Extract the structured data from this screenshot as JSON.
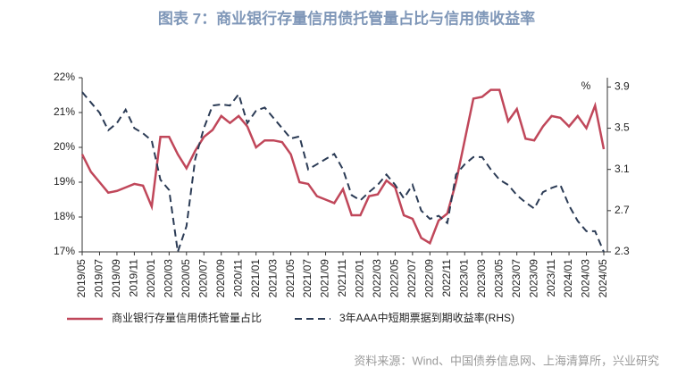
{
  "chart_data": {
    "type": "line",
    "title": "图表 7：商业银行存量信用债托管量占比与信用债收益率",
    "y2_label": "%",
    "source": "资料来源：Wind、中国债券信息网、上海清算所，兴业研究",
    "categories": [
      "2019/05",
      null,
      "2019/07",
      null,
      "2019/09",
      null,
      "2019/11",
      null,
      "2020/01",
      null,
      "2020/03",
      null,
      "2020/05",
      null,
      "2020/07",
      null,
      "2020/09",
      null,
      "2020/11",
      null,
      "2021/01",
      null,
      "2021/03",
      null,
      "2021/05",
      null,
      "2021/07",
      null,
      "2021/09",
      null,
      "2021/11",
      null,
      "2022/01",
      null,
      "2022/03",
      null,
      "2022/05",
      null,
      "2022/07",
      null,
      "2022/09",
      null,
      "2022/11",
      null,
      "2023/01",
      null,
      "2023/03",
      null,
      "2023/05",
      null,
      "2023/07",
      null,
      "2023/09",
      null,
      "2023/11",
      null,
      "2024/01",
      null,
      "2024/03",
      null,
      "2024/05"
    ],
    "series": [
      {
        "name": "商业银行存量信用债托管量占比",
        "color": "#c0475a",
        "dash": false,
        "values": [
          19.8,
          19.3,
          19.0,
          18.7,
          18.75,
          18.85,
          18.95,
          18.9,
          18.3,
          20.3,
          20.3,
          19.8,
          19.4,
          19.9,
          20.3,
          20.5,
          20.9,
          20.7,
          20.9,
          20.6,
          20.0,
          20.2,
          20.2,
          20.15,
          19.8,
          19.0,
          18.95,
          18.6,
          18.5,
          18.4,
          18.8,
          18.05,
          18.05,
          18.6,
          18.65,
          19.05,
          18.85,
          18.05,
          17.95,
          17.4,
          17.25,
          17.9,
          18.1,
          19.0,
          20.2,
          21.4,
          21.45,
          21.65,
          21.65,
          20.75,
          21.1,
          20.25,
          20.2,
          20.6,
          20.9,
          20.85,
          20.6,
          20.9,
          20.55,
          21.2,
          19.95
        ]
      },
      {
        "name": "3年AAA中短期票据到期收益率(RHS)",
        "color": "#2b3b55",
        "dash": true,
        "axis": "y2",
        "values": [
          3.85,
          3.75,
          3.65,
          3.48,
          3.55,
          3.68,
          3.5,
          3.45,
          3.38,
          3.0,
          2.9,
          2.3,
          2.55,
          3.2,
          3.5,
          3.72,
          3.73,
          3.72,
          3.83,
          3.55,
          3.67,
          3.7,
          3.6,
          3.5,
          3.4,
          3.42,
          3.1,
          3.15,
          3.2,
          3.25,
          3.1,
          2.85,
          2.8,
          2.88,
          2.95,
          3.05,
          2.95,
          2.82,
          2.95,
          2.7,
          2.62,
          2.65,
          2.58,
          3.05,
          3.15,
          3.22,
          3.22,
          3.1,
          3.0,
          2.95,
          2.85,
          2.78,
          2.72,
          2.88,
          2.92,
          2.95,
          2.75,
          2.6,
          2.5,
          2.5,
          2.3
        ]
      }
    ],
    "ylim": [
      17,
      22
    ],
    "yticks": [
      {
        "value": 17,
        "label": "17%"
      },
      {
        "value": 18,
        "label": "18%"
      },
      {
        "value": 19,
        "label": "19%"
      },
      {
        "value": 20,
        "label": "20%"
      },
      {
        "value": 21,
        "label": "21%"
      },
      {
        "value": 22,
        "label": "22%"
      }
    ],
    "y2lim": [
      2.3,
      3.99
    ],
    "y2ticks": [
      2.3,
      2.7,
      3.1,
      3.5,
      3.9
    ]
  }
}
